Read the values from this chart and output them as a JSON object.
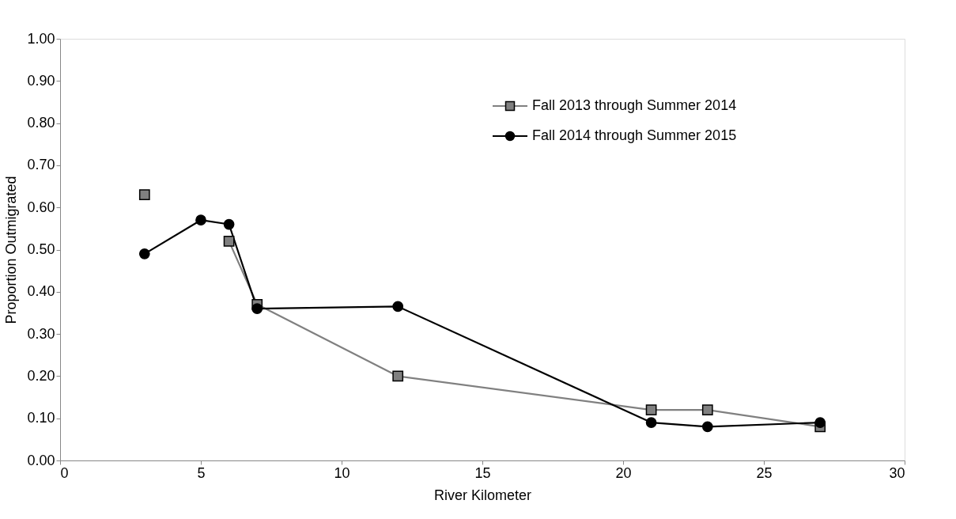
{
  "chart_data": {
    "type": "line",
    "xlabel": "River Kilometer",
    "ylabel": "Proportion Outmigrated",
    "x": [
      3,
      5,
      6,
      7,
      12,
      21,
      23,
      27
    ],
    "series": [
      {
        "name": "Fall 2013 through Summer 2014",
        "color": "#808080",
        "marker": "square",
        "values": [
          0.63,
          null,
          0.52,
          0.37,
          0.2,
          0.12,
          0.12,
          0.08
        ]
      },
      {
        "name": "Fall 2014 through Summer 2015",
        "color": "#000000",
        "marker": "circle",
        "values": [
          0.49,
          0.57,
          0.56,
          0.36,
          0.365,
          0.09,
          0.08,
          0.09
        ]
      }
    ],
    "xlim": [
      0,
      30
    ],
    "xticks": [
      0,
      5,
      10,
      15,
      20,
      25,
      30
    ],
    "ylim": [
      0,
      1
    ],
    "yticks": [
      {
        "value": 0,
        "label": "0.00"
      },
      {
        "value": 0.1,
        "label": "0.10"
      },
      {
        "value": 0.2,
        "label": "0.20"
      },
      {
        "value": 0.3,
        "label": "0.30"
      },
      {
        "value": 0.4,
        "label": "0.40"
      },
      {
        "value": 0.5,
        "label": "0.50"
      },
      {
        "value": 0.6,
        "label": "0.60"
      },
      {
        "value": 0.7,
        "label": "0.70"
      },
      {
        "value": 0.8,
        "label": "0.80"
      },
      {
        "value": 0.9,
        "label": "0.90"
      },
      {
        "value": 1,
        "label": "1.00"
      }
    ],
    "grid": false,
    "legend": "top right",
    "line_style": "solid"
  }
}
